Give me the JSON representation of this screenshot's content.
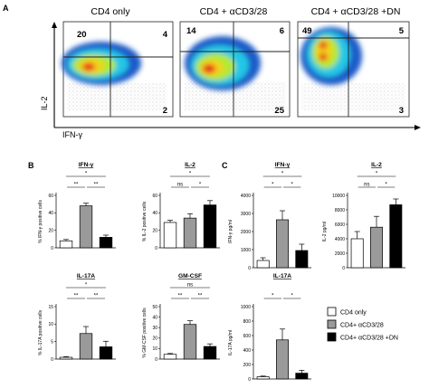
{
  "panel_labels": {
    "a": "A",
    "b": "B",
    "c": "C"
  },
  "flow": {
    "x_axis_label": "IFN-γ",
    "y_axis_label": "IL-2",
    "plots": [
      {
        "title": "CD4 only",
        "ul": "20",
        "ur": "4",
        "lr": "2",
        "ll": ""
      },
      {
        "title": "CD4 + αCD3/28",
        "ul": "14",
        "ur": "6",
        "lr": "25",
        "ll": ""
      },
      {
        "title": "CD4 + αCD3/28 +DN",
        "ul": "49",
        "ur": "5",
        "lr": "3",
        "ll": ""
      }
    ]
  },
  "colors": {
    "cd4_only": "#ffffff",
    "cd4_acd3": "#9a9a9a",
    "cd4_acd3_dn": "#000000"
  },
  "legend": {
    "items": [
      "CD4 only",
      "CD4+ αCD3/28",
      "CD4+ αCD3/28 +DN"
    ]
  },
  "chart_data": [
    {
      "type": "bar",
      "panel": "B",
      "title": "IFN-γ",
      "ylabel": "% IFN-γ positive cells",
      "categories": [
        "CD4 only",
        "CD4+ αCD3/28",
        "CD4+ αCD3/28 +DN"
      ],
      "values": [
        8,
        48,
        12
      ],
      "errors": [
        1.5,
        3,
        2.5
      ],
      "ylim": [
        0,
        60
      ],
      "yticks": [
        "0",
        "20",
        "40",
        "60"
      ],
      "sig": [
        {
          "from": 0,
          "to": 1,
          "label": "**"
        },
        {
          "from": 1,
          "to": 2,
          "label": "**"
        },
        {
          "from": 0,
          "to": 2,
          "label": "*"
        }
      ]
    },
    {
      "type": "bar",
      "panel": "B",
      "title": "IL-2",
      "ylabel": "% IL-2 positive cells",
      "categories": [
        "CD4 only",
        "CD4+ αCD3/28",
        "CD4+ αCD3/28 +DN"
      ],
      "values": [
        29,
        34,
        49
      ],
      "errors": [
        2.5,
        5,
        5
      ],
      "ylim": [
        0,
        60
      ],
      "yticks": [
        "0",
        "20",
        "40",
        "60"
      ],
      "sig": [
        {
          "from": 0,
          "to": 1,
          "label": "ns"
        },
        {
          "from": 1,
          "to": 2,
          "label": "*"
        },
        {
          "from": 0,
          "to": 2,
          "label": "*"
        }
      ]
    },
    {
      "type": "bar",
      "panel": "B",
      "title": "IL-17A",
      "ylabel": "% IL-17A positive cells",
      "categories": [
        "CD4 only",
        "CD4+ αCD3/28",
        "CD4+ αCD3/28 +DN"
      ],
      "values": [
        0.5,
        7.3,
        3.5
      ],
      "errors": [
        0.2,
        2.0,
        1.6
      ],
      "ylim": [
        0,
        15
      ],
      "yticks": [
        "0",
        "5",
        "10",
        "15"
      ],
      "sig": [
        {
          "from": 0,
          "to": 1,
          "label": "**"
        },
        {
          "from": 1,
          "to": 2,
          "label": "**"
        },
        {
          "from": 0,
          "to": 2,
          "label": "*"
        }
      ]
    },
    {
      "type": "bar",
      "panel": "B",
      "title": "GM-CSF",
      "ylabel": "% GM-CSF positive cells",
      "categories": [
        "CD4 only",
        "CD4+ αCD3/28",
        "CD4+ αCD3/28 +DN"
      ],
      "values": [
        4.5,
        33,
        12
      ],
      "errors": [
        0.8,
        3.5,
        2.5
      ],
      "ylim": [
        0,
        50
      ],
      "yticks": [
        "0",
        "10",
        "20",
        "30",
        "40",
        "50"
      ],
      "sig": [
        {
          "from": 0,
          "to": 1,
          "label": "**"
        },
        {
          "from": 1,
          "to": 2,
          "label": "**"
        },
        {
          "from": 0,
          "to": 2,
          "label": "ns"
        }
      ]
    },
    {
      "type": "bar",
      "panel": "C",
      "title": "IFN-γ",
      "ylabel": "IFN-γ pg/ml",
      "categories": [
        "CD4 only",
        "CD4+ αCD3/28",
        "CD4+ αCD3/28 +DN"
      ],
      "values": [
        400,
        2650,
        950
      ],
      "errors": [
        150,
        500,
        350
      ],
      "ylim": [
        0,
        4000
      ],
      "yticks": [
        "0",
        "1000",
        "2000",
        "3000",
        "4000"
      ],
      "sig": [
        {
          "from": 0,
          "to": 1,
          "label": "*"
        },
        {
          "from": 1,
          "to": 2,
          "label": "*"
        },
        {
          "from": 0,
          "to": 2,
          "label": "*"
        }
      ]
    },
    {
      "type": "bar",
      "panel": "C",
      "title": "IL-2",
      "ylabel": "IL-2 pg/ml",
      "categories": [
        "CD4 only",
        "CD4+ αCD3/28",
        "CD4+ αCD3/28 +DN"
      ],
      "values": [
        4000,
        5600,
        8700
      ],
      "errors": [
        1000,
        1500,
        800
      ],
      "ylim": [
        0,
        10000
      ],
      "yticks": [
        "0",
        "2000",
        "4000",
        "6000",
        "8000",
        "10000"
      ],
      "sig": [
        {
          "from": 0,
          "to": 1,
          "label": "ns"
        },
        {
          "from": 1,
          "to": 2,
          "label": "*"
        },
        {
          "from": 0,
          "to": 2,
          "label": "*"
        }
      ]
    },
    {
      "type": "bar",
      "panel": "C",
      "title": "IL-17A",
      "ylabel": "IL-17A pg/ml",
      "categories": [
        "CD4 only",
        "CD4+ αCD3/28",
        "CD4+ αCD3/28 +DN"
      ],
      "values": [
        30,
        540,
        80
      ],
      "errors": [
        10,
        150,
        40
      ],
      "ylim": [
        0,
        1000
      ],
      "yticks": [
        "0",
        "200",
        "400",
        "600",
        "800",
        "1000"
      ],
      "sig": [
        {
          "from": 0,
          "to": 1,
          "label": "*"
        },
        {
          "from": 1,
          "to": 2,
          "label": "*"
        }
      ]
    }
  ]
}
